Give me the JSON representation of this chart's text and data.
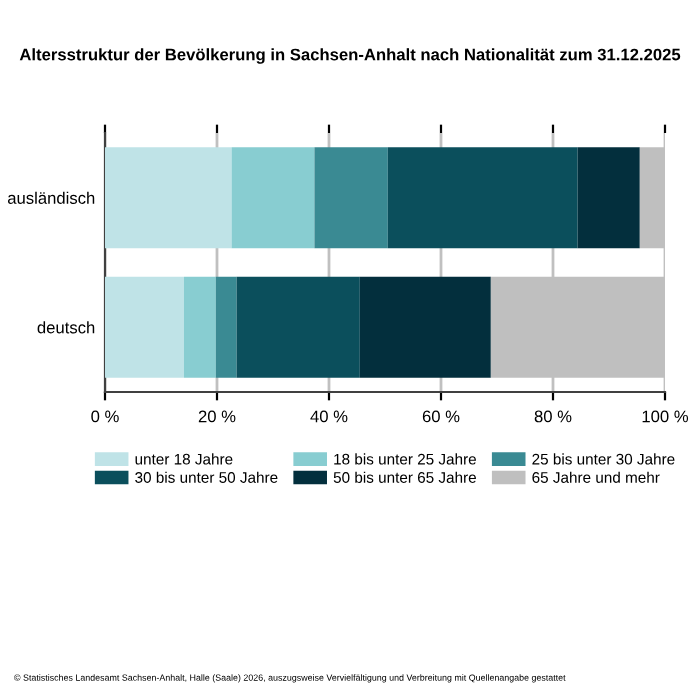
{
  "chart_data": {
    "type": "bar",
    "orientation": "horizontal",
    "stacked": true,
    "title": "Altersstruktur der Bevölkerung in Sachsen-Anhalt nach Nationalität zum 31.12.2025",
    "categories": [
      "ausländisch",
      "deutsch"
    ],
    "series": [
      {
        "name": "unter 18 Jahre",
        "color": "#bfe3e7",
        "values": [
          22.6,
          14.1
        ]
      },
      {
        "name": "18 bis unter 25 Jahre",
        "color": "#88cdd1",
        "values": [
          14.8,
          5.7
        ]
      },
      {
        "name": "25 bis unter 30 Jahre",
        "color": "#3a8a93",
        "values": [
          13.1,
          3.7
        ]
      },
      {
        "name": "30 bis unter 50 Jahre",
        "color": "#0b4f5c",
        "values": [
          33.9,
          22.0
        ]
      },
      {
        "name": "50 bis unter 65 Jahre",
        "color": "#032f3d",
        "values": [
          11.1,
          23.4
        ]
      },
      {
        "name": "65 Jahre und mehr",
        "color": "#bfbfbf",
        "values": [
          4.5,
          31.1
        ]
      }
    ],
    "xlim": [
      0,
      100
    ],
    "xticks": [
      {
        "value": 0,
        "label": "0 %"
      },
      {
        "value": 20,
        "label": "20 %"
      },
      {
        "value": 40,
        "label": "40 %"
      },
      {
        "value": 60,
        "label": "60 %"
      },
      {
        "value": 80,
        "label": "80 %"
      },
      {
        "value": 100,
        "label": "100 %"
      }
    ],
    "grid": "x",
    "legend": "bottom",
    "annotations": [
      "© Statistisches Landesamt Sachsen-Anhalt, Halle (Saale) 2026, auszugsweise Vervielfältigung und Verbreitung mit Quellenangabe gestattet"
    ]
  }
}
